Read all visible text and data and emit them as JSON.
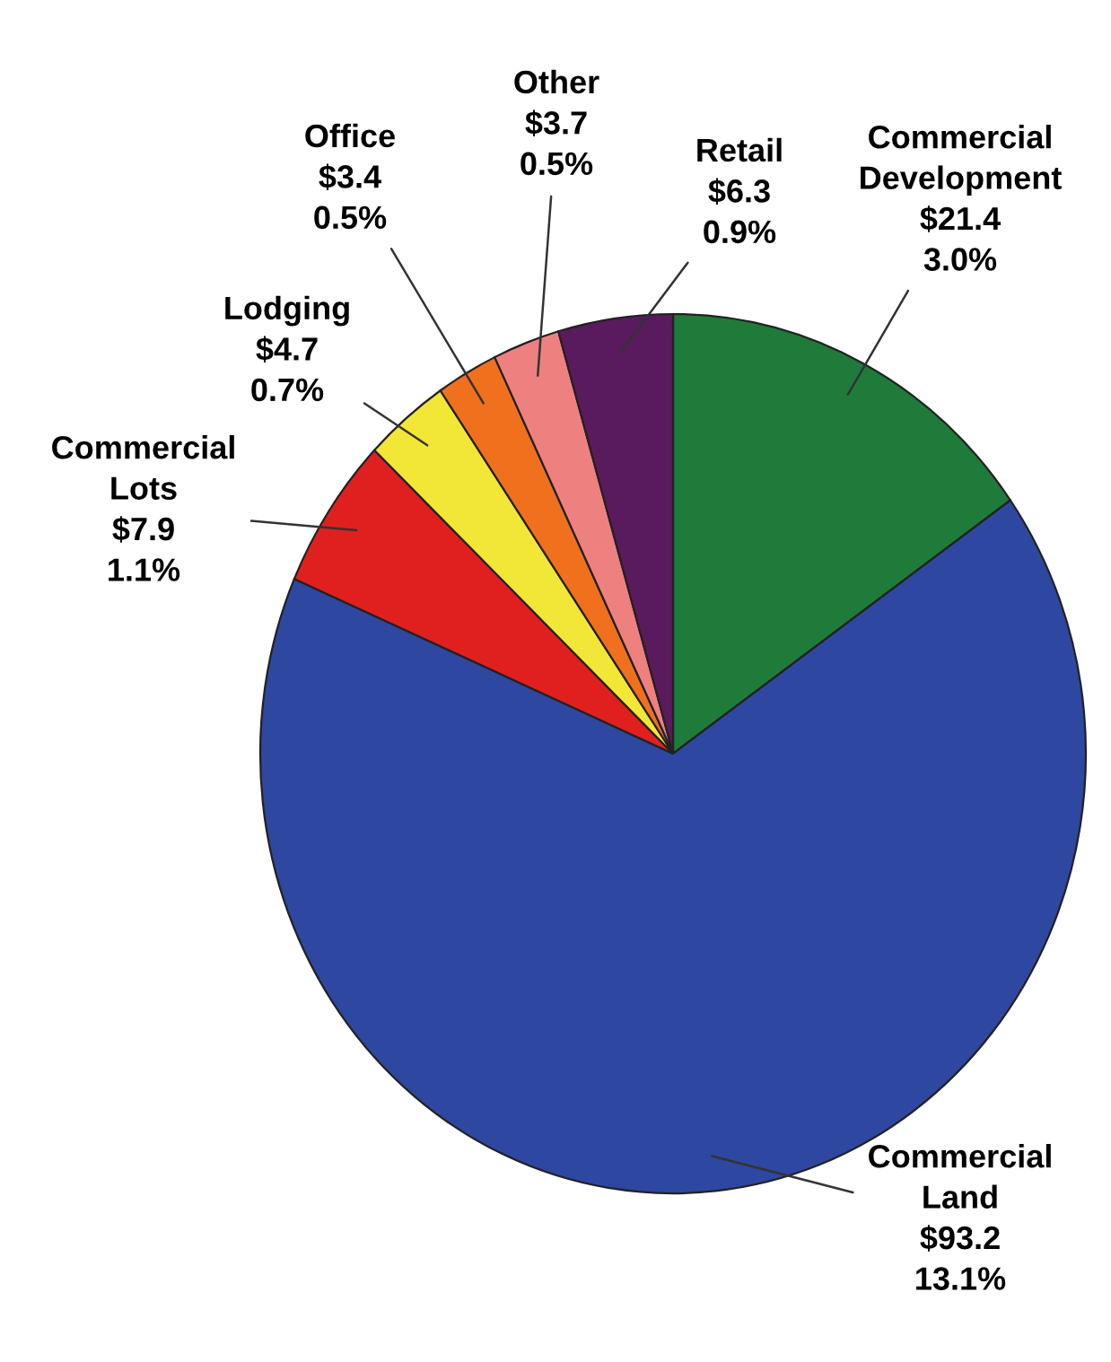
{
  "chart_data": {
    "type": "pie",
    "categories": [
      "Commercial\nDevelopment",
      "Commercial\nLand",
      "Commercial\nLots",
      "Lodging",
      "Office",
      "Other",
      "Retail"
    ],
    "values": [
      21.4,
      93.2,
      7.9,
      4.7,
      3.4,
      3.7,
      6.3
    ],
    "value_labels": [
      "$21.4\n3.0%",
      "$93.2\n13.1%",
      "$7.9\n1.1%",
      "$4.7\n0.7%",
      "$3.4\n0.5%",
      "$3.7\n0.5%",
      "$6.3\n0.9%"
    ],
    "colors": [
      "#1e7b3a",
      "#2e47a0",
      "#e0201f",
      "#f2e636",
      "#f0701e",
      "#ef8080",
      "#5a1a5e"
    ]
  }
}
